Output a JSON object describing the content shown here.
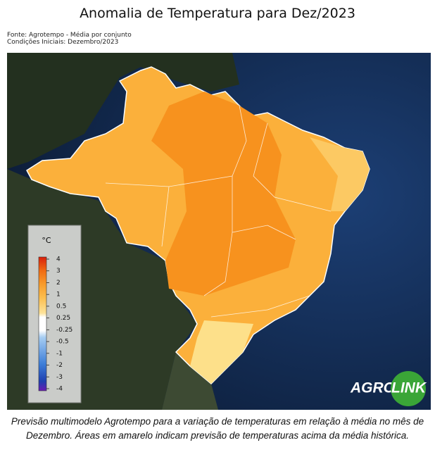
{
  "header": {
    "title": "Anomalia de Temperatura para Dez/2023",
    "source": [
      "Fonte: Agrotempo - Média por conjunto",
      "Condições Iniciais: Dezembro/2023"
    ]
  },
  "legend": {
    "unit": "°C",
    "ticks": [
      4,
      3,
      2,
      1,
      0.5,
      0.25,
      -0.25,
      -0.5,
      -1,
      -2,
      -3,
      -4
    ]
  },
  "logo": {
    "left": "AGRO",
    "right": "LINK"
  },
  "caption": "Previsão multimodelo Agrotempo para a variação de temperaturas em relação à média no mês de Dezembro. Áreas em amarelo indicam previsão de temperaturas acima da média histórica."
}
